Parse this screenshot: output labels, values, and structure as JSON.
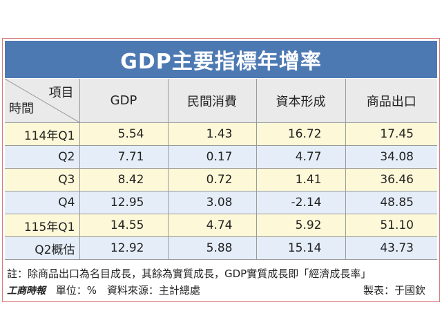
{
  "title": "GDP主要指標年增率",
  "header": {
    "corner_top": "項目",
    "corner_bottom": "時間",
    "columns": [
      "GDP",
      "民間消費",
      "資本形成",
      "商品出口"
    ]
  },
  "rows": [
    {
      "period": "114年Q1",
      "values": [
        "5.54",
        "1.43",
        "16.72",
        "17.45"
      ]
    },
    {
      "period": "Q2",
      "values": [
        "7.71",
        "0.17",
        "4.77",
        "34.08"
      ]
    },
    {
      "period": "Q3",
      "values": [
        "8.42",
        "0.72",
        "1.41",
        "36.46"
      ]
    },
    {
      "period": "Q4",
      "values": [
        "12.95",
        "3.08",
        "-2.14",
        "48.85"
      ]
    },
    {
      "period": "115年Q1",
      "values": [
        "14.55",
        "4.74",
        "5.92",
        "51.10"
      ]
    },
    {
      "period": "Q2概估",
      "values": [
        "12.92",
        "5.88",
        "15.14",
        "43.73"
      ]
    }
  ],
  "note": "註：除商品出口為名目成長，其餘為實質成長，GDP實質成長即「經濟成長率」",
  "footer": {
    "source_logo": "工商時報",
    "unit": "單位：%",
    "source": "資料來源：主計總處",
    "maker": "製表：于國欽"
  },
  "colors": {
    "title_bg": "#4d79b3",
    "row_yellow": "#fdf8d7",
    "row_blue": "#e5eef8",
    "header_bg": "#eaeaea"
  },
  "chart_data": {
    "type": "table",
    "title": "GDP主要指標年增率",
    "columns": [
      "GDP",
      "民間消費",
      "資本形成",
      "商品出口"
    ],
    "rows": [
      "114年Q1",
      "Q2",
      "Q3",
      "Q4",
      "115年Q1",
      "Q2概估"
    ],
    "values": [
      [
        5.54,
        1.43,
        16.72,
        17.45
      ],
      [
        7.71,
        0.17,
        4.77,
        34.08
      ],
      [
        8.42,
        0.72,
        1.41,
        36.46
      ],
      [
        12.95,
        3.08,
        -2.14,
        48.85
      ],
      [
        14.55,
        4.74,
        5.92,
        51.1
      ],
      [
        12.92,
        5.88,
        15.14,
        43.73
      ]
    ],
    "unit": "單位：%"
  }
}
